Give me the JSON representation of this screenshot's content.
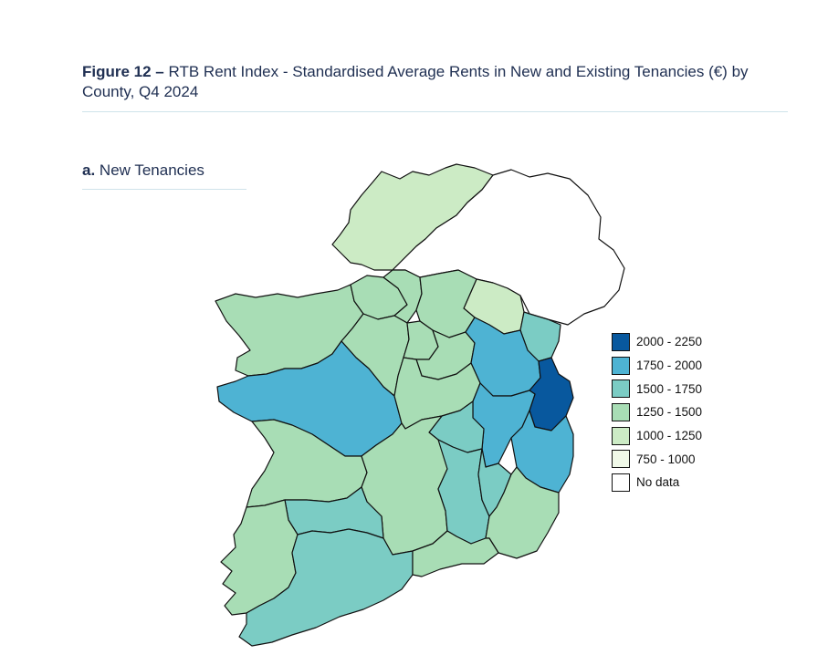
{
  "figure": {
    "label": "Figure 12 –",
    "title": "RTB Rent Index - Standardised Average Rents in New and Existing Tenancies (€) by County, Q4 2024"
  },
  "panel": {
    "label": "a.",
    "title": "New Tenancies"
  },
  "legend": [
    {
      "label": "2000 - 2250",
      "color": "#08589e"
    },
    {
      "label": "1750 - 2000",
      "color": "#4eb3d3"
    },
    {
      "label": "1500 - 1750",
      "color": "#7bccc4"
    },
    {
      "label": "1250 - 1500",
      "color": "#a8ddb5"
    },
    {
      "label": "1000 - 1250",
      "color": "#ccebc5"
    },
    {
      "label": "750 - 1000",
      "color": "#f0f9e8"
    },
    {
      "label": "No data",
      "color": "#ffffff"
    }
  ],
  "regions": [
    {
      "name": "Donegal",
      "band": "1000 - 1250",
      "color": "#ccebc5"
    },
    {
      "name": "Northern Ireland",
      "band": "No data",
      "color": "#ffffff"
    },
    {
      "name": "Monaghan",
      "band": "1000 - 1250",
      "color": "#ccebc5"
    },
    {
      "name": "Louth",
      "band": "1500 - 1750",
      "color": "#7bccc4"
    },
    {
      "name": "Mayo",
      "band": "1250 - 1500",
      "color": "#a8ddb5"
    },
    {
      "name": "Sligo",
      "band": "1250 - 1500",
      "color": "#a8ddb5"
    },
    {
      "name": "Leitrim",
      "band": "1250 - 1500",
      "color": "#a8ddb5"
    },
    {
      "name": "Cavan",
      "band": "1250 - 1500",
      "color": "#a8ddb5"
    },
    {
      "name": "Roscommon",
      "band": "1250 - 1500",
      "color": "#a8ddb5"
    },
    {
      "name": "Longford",
      "band": "1250 - 1500",
      "color": "#a8ddb5"
    },
    {
      "name": "Westmeath",
      "band": "1250 - 1500",
      "color": "#a8ddb5"
    },
    {
      "name": "Meath",
      "band": "1750 - 2000",
      "color": "#4eb3d3"
    },
    {
      "name": "Dublin",
      "band": "2000 - 2250",
      "color": "#08589e"
    },
    {
      "name": "Galway",
      "band": "1750 - 2000",
      "color": "#4eb3d3"
    },
    {
      "name": "Offaly",
      "band": "1250 - 1500",
      "color": "#a8ddb5"
    },
    {
      "name": "Kildare",
      "band": "1750 - 2000",
      "color": "#4eb3d3"
    },
    {
      "name": "Wicklow",
      "band": "1750 - 2000",
      "color": "#4eb3d3"
    },
    {
      "name": "Laois",
      "band": "1500 - 1750",
      "color": "#7bccc4"
    },
    {
      "name": "Clare",
      "band": "1250 - 1500",
      "color": "#a8ddb5"
    },
    {
      "name": "Tipperary",
      "band": "1250 - 1500",
      "color": "#a8ddb5"
    },
    {
      "name": "Kilkenny",
      "band": "1500 - 1750",
      "color": "#7bccc4"
    },
    {
      "name": "Carlow",
      "band": "1500 - 1750",
      "color": "#7bccc4"
    },
    {
      "name": "Wexford",
      "band": "1250 - 1500",
      "color": "#a8ddb5"
    },
    {
      "name": "Limerick",
      "band": "1500 - 1750",
      "color": "#7bccc4"
    },
    {
      "name": "Kerry",
      "band": "1250 - 1500",
      "color": "#a8ddb5"
    },
    {
      "name": "Cork",
      "band": "1500 - 1750",
      "color": "#7bccc4"
    },
    {
      "name": "Waterford",
      "band": "1250 - 1500",
      "color": "#a8ddb5"
    }
  ]
}
